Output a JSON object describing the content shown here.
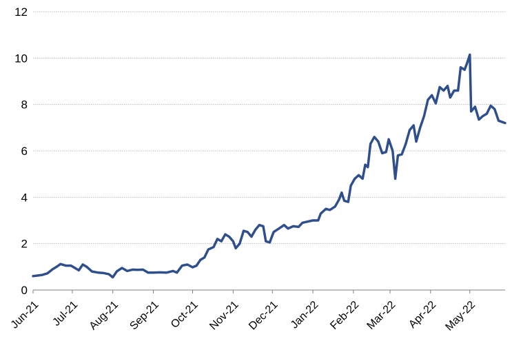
{
  "chart_data": {
    "type": "line",
    "title": "",
    "xlabel": "",
    "ylabel": "",
    "ylim": [
      0,
      12
    ],
    "yticks": [
      "0",
      "2",
      "4",
      "6",
      "8",
      "10",
      "12"
    ],
    "xlim": [
      "2021-06-01",
      "2022-05-28"
    ],
    "xticks": [
      {
        "date": "2021-06-01",
        "label": "Jun-21"
      },
      {
        "date": "2021-07-01",
        "label": "Jul-21"
      },
      {
        "date": "2021-08-01",
        "label": "Aug-21"
      },
      {
        "date": "2021-09-01",
        "label": "Sep-21"
      },
      {
        "date": "2021-10-01",
        "label": "Oct-21"
      },
      {
        "date": "2021-11-01",
        "label": "Nov-21"
      },
      {
        "date": "2021-12-01",
        "label": "Dec-21"
      },
      {
        "date": "2022-01-01",
        "label": "Jan-22"
      },
      {
        "date": "2022-02-01",
        "label": "Feb-22"
      },
      {
        "date": "2022-03-01",
        "label": "Mar-22"
      },
      {
        "date": "2022-04-01",
        "label": "Apr-22"
      },
      {
        "date": "2022-05-01",
        "label": "May-22"
      }
    ],
    "grid": true,
    "legend": "none",
    "series": [
      {
        "color": "#2f4f8c",
        "points": [
          [
            "2021-06-01",
            0.6
          ],
          [
            "2021-06-04",
            0.62
          ],
          [
            "2021-06-08",
            0.65
          ],
          [
            "2021-06-12",
            0.72
          ],
          [
            "2021-06-16",
            0.9
          ],
          [
            "2021-06-19",
            1.0
          ],
          [
            "2021-06-22",
            1.12
          ],
          [
            "2021-06-26",
            1.05
          ],
          [
            "2021-06-30",
            1.05
          ],
          [
            "2021-07-03",
            0.95
          ],
          [
            "2021-07-06",
            0.85
          ],
          [
            "2021-07-09",
            1.1
          ],
          [
            "2021-07-12",
            1.0
          ],
          [
            "2021-07-16",
            0.8
          ],
          [
            "2021-07-21",
            0.75
          ],
          [
            "2021-07-25",
            0.73
          ],
          [
            "2021-07-29",
            0.68
          ],
          [
            "2021-08-01",
            0.55
          ],
          [
            "2021-08-04",
            0.8
          ],
          [
            "2021-08-08",
            0.95
          ],
          [
            "2021-08-12",
            0.82
          ],
          [
            "2021-08-16",
            0.88
          ],
          [
            "2021-08-20",
            0.87
          ],
          [
            "2021-08-24",
            0.88
          ],
          [
            "2021-08-28",
            0.75
          ],
          [
            "2021-09-01",
            0.75
          ],
          [
            "2021-09-06",
            0.76
          ],
          [
            "2021-09-11",
            0.75
          ],
          [
            "2021-09-16",
            0.82
          ],
          [
            "2021-09-19",
            0.75
          ],
          [
            "2021-09-23",
            1.05
          ],
          [
            "2021-09-27",
            1.1
          ],
          [
            "2021-10-01",
            0.98
          ],
          [
            "2021-10-04",
            1.05
          ],
          [
            "2021-10-07",
            1.3
          ],
          [
            "2021-10-10",
            1.4
          ],
          [
            "2021-10-13",
            1.75
          ],
          [
            "2021-10-17",
            1.85
          ],
          [
            "2021-10-20",
            2.2
          ],
          [
            "2021-10-23",
            2.1
          ],
          [
            "2021-10-26",
            2.4
          ],
          [
            "2021-10-29",
            2.3
          ],
          [
            "2021-11-01",
            2.1
          ],
          [
            "2021-11-03",
            1.8
          ],
          [
            "2021-11-06",
            2.0
          ],
          [
            "2021-11-09",
            2.55
          ],
          [
            "2021-11-12",
            2.5
          ],
          [
            "2021-11-15",
            2.3
          ],
          [
            "2021-11-18",
            2.6
          ],
          [
            "2021-11-21",
            2.8
          ],
          [
            "2021-11-24",
            2.75
          ],
          [
            "2021-11-26",
            2.1
          ],
          [
            "2021-11-29",
            2.05
          ],
          [
            "2021-12-02",
            2.5
          ],
          [
            "2021-12-06",
            2.65
          ],
          [
            "2021-12-10",
            2.8
          ],
          [
            "2021-12-13",
            2.65
          ],
          [
            "2021-12-17",
            2.75
          ],
          [
            "2021-12-21",
            2.72
          ],
          [
            "2021-12-24",
            2.9
          ],
          [
            "2021-12-28",
            2.95
          ],
          [
            "2022-01-01",
            3.0
          ],
          [
            "2022-01-05",
            3.0
          ],
          [
            "2022-01-07",
            3.3
          ],
          [
            "2022-01-11",
            3.5
          ],
          [
            "2022-01-14",
            3.45
          ],
          [
            "2022-01-18",
            3.6
          ],
          [
            "2022-01-21",
            3.9
          ],
          [
            "2022-01-23",
            4.2
          ],
          [
            "2022-01-25",
            3.85
          ],
          [
            "2022-01-28",
            3.8
          ],
          [
            "2022-01-30",
            4.5
          ],
          [
            "2022-02-02",
            4.8
          ],
          [
            "2022-02-05",
            4.95
          ],
          [
            "2022-02-08",
            4.8
          ],
          [
            "2022-02-10",
            5.4
          ],
          [
            "2022-02-12",
            5.3
          ],
          [
            "2022-02-14",
            6.3
          ],
          [
            "2022-02-17",
            6.6
          ],
          [
            "2022-02-20",
            6.4
          ],
          [
            "2022-02-23",
            5.9
          ],
          [
            "2022-02-26",
            5.95
          ],
          [
            "2022-02-28",
            6.5
          ],
          [
            "2022-03-03",
            6.0
          ],
          [
            "2022-03-05",
            4.8
          ],
          [
            "2022-03-07",
            5.8
          ],
          [
            "2022-03-10",
            5.85
          ],
          [
            "2022-03-13",
            6.3
          ],
          [
            "2022-03-16",
            6.9
          ],
          [
            "2022-03-19",
            7.1
          ],
          [
            "2022-03-21",
            6.4
          ],
          [
            "2022-03-24",
            7.0
          ],
          [
            "2022-03-27",
            7.5
          ],
          [
            "2022-03-30",
            8.2
          ],
          [
            "2022-04-02",
            8.4
          ],
          [
            "2022-04-05",
            8.05
          ],
          [
            "2022-04-08",
            8.75
          ],
          [
            "2022-04-11",
            8.6
          ],
          [
            "2022-04-14",
            8.8
          ],
          [
            "2022-04-16",
            8.3
          ],
          [
            "2022-04-19",
            8.6
          ],
          [
            "2022-04-22",
            8.6
          ],
          [
            "2022-04-24",
            9.6
          ],
          [
            "2022-04-27",
            9.5
          ],
          [
            "2022-04-29",
            9.8
          ],
          [
            "2022-05-01",
            10.15
          ],
          [
            "2022-05-02",
            7.7
          ],
          [
            "2022-05-05",
            7.9
          ],
          [
            "2022-05-08",
            7.35
          ],
          [
            "2022-05-11",
            7.5
          ],
          [
            "2022-05-14",
            7.6
          ],
          [
            "2022-05-17",
            7.95
          ],
          [
            "2022-05-20",
            7.8
          ],
          [
            "2022-05-23",
            7.3
          ],
          [
            "2022-05-28",
            7.2
          ]
        ]
      }
    ]
  }
}
